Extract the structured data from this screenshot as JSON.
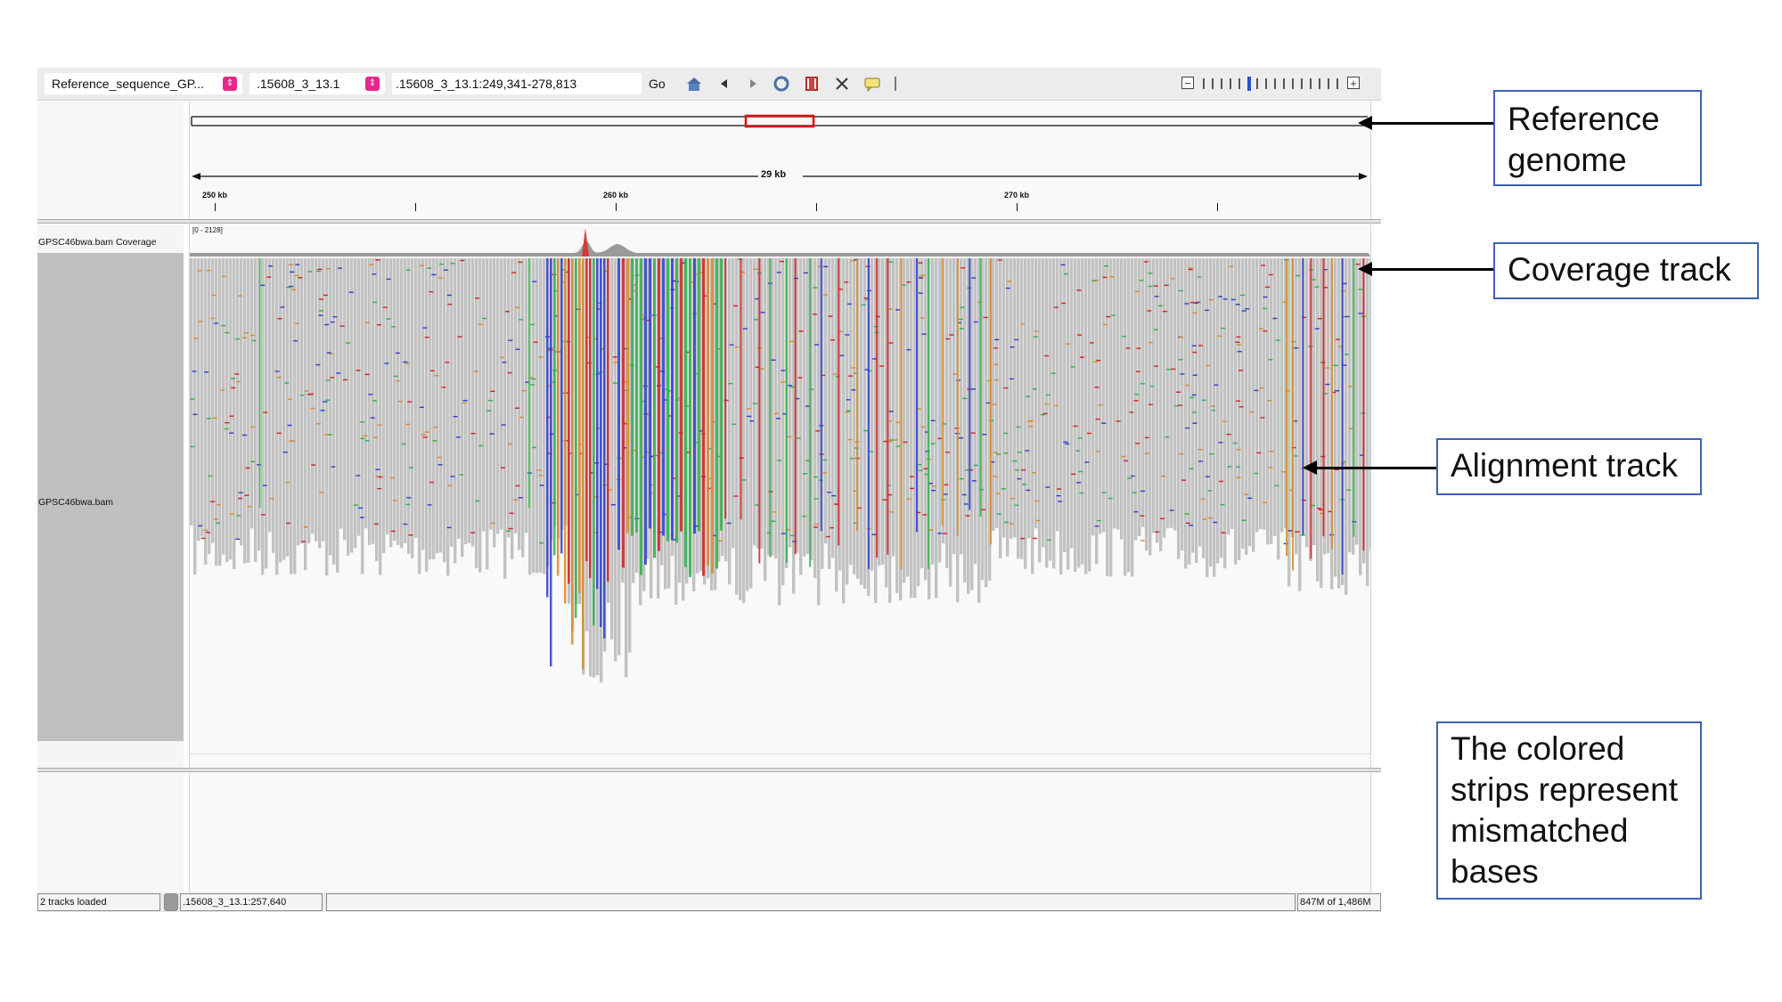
{
  "toolbar": {
    "genome_select": "Reference_sequence_GP...",
    "chromosome_select": ".15608_3_13.1",
    "locus": ".15608_3_13.1:249,341-278,813",
    "go_label": "Go",
    "icons": [
      "home-icon",
      "back-icon",
      "forward-icon",
      "refresh-icon",
      "roi-icon",
      "resize-icon",
      "popup-text-icon",
      "divider"
    ],
    "zoom_minus": "−",
    "zoom_plus": "+",
    "zoom_level_index": 5
  },
  "ruler": {
    "span_label": "29 kb",
    "ticks": [
      {
        "label": "250 kb"
      },
      {
        "label": ""
      },
      {
        "label": "260 kb"
      },
      {
        "label": ""
      },
      {
        "label": "270 kb"
      },
      {
        "label": ""
      }
    ]
  },
  "tracks": {
    "coverage_name": "GPSC46bwa.bam Coverage",
    "coverage_range": "[0 - 2128]",
    "alignment_name": "GPSC46bwa.bam"
  },
  "status": {
    "tracks_loaded": "2 tracks loaded",
    "position": ".15608_3_13.1:257,640",
    "message": "",
    "memory": "847M of 1,486M"
  },
  "annotations": {
    "reference_genome": "Reference genome",
    "coverage_track": "Coverage track",
    "alignment_track": "Alignment track",
    "mismatch_note": "The colored strips represent mismatched bases"
  },
  "colors": {
    "callout_border": "#3b62b3",
    "read_gray": "#c2c2c2",
    "mismatch_A": "#2fb24a",
    "mismatch_C": "#2b3fd0",
    "mismatch_G": "#d9892a",
    "mismatch_T": "#d62020",
    "region_box": "#e01010"
  }
}
